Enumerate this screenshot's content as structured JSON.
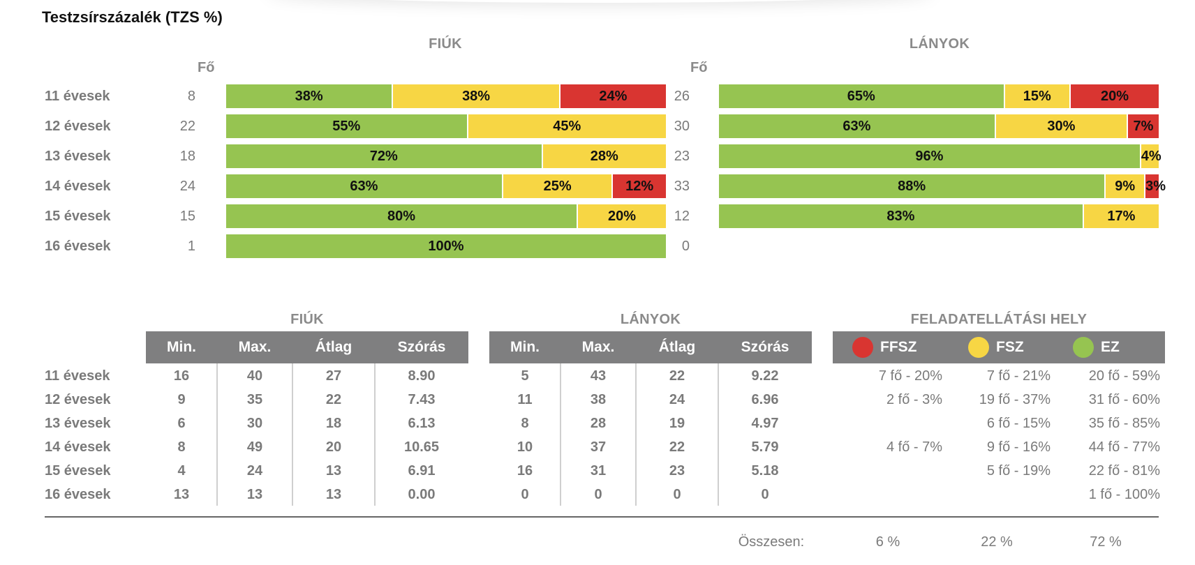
{
  "title": "Testzsírszázalék (TZS %)",
  "colors": {
    "green": "#96c451",
    "yellow": "#f7d644",
    "red": "#d93531",
    "header": "#7f7f80"
  },
  "chart_data": {
    "type": "bar",
    "stacked": true,
    "categories": [
      "11 évesek",
      "12 évesek",
      "13 évesek",
      "14 évesek",
      "15 évesek",
      "16 évesek"
    ],
    "count_header": "Fő",
    "panels": [
      {
        "title": "FIÚK",
        "counts": [
          "8",
          "22",
          "18",
          "24",
          "15",
          "1"
        ],
        "rows": [
          [
            {
              "c": "g",
              "v": 38,
              "label": "38%"
            },
            {
              "c": "y",
              "v": 38,
              "label": "38%"
            },
            {
              "c": "r",
              "v": 24,
              "label": "24%"
            }
          ],
          [
            {
              "c": "g",
              "v": 55,
              "label": "55%"
            },
            {
              "c": "y",
              "v": 45,
              "label": "45%"
            }
          ],
          [
            {
              "c": "g",
              "v": 72,
              "label": "72%"
            },
            {
              "c": "y",
              "v": 28,
              "label": "28%"
            }
          ],
          [
            {
              "c": "g",
              "v": 63,
              "label": "63%"
            },
            {
              "c": "y",
              "v": 25,
              "label": "25%"
            },
            {
              "c": "r",
              "v": 12,
              "label": "12%"
            }
          ],
          [
            {
              "c": "g",
              "v": 80,
              "label": "80%"
            },
            {
              "c": "y",
              "v": 20,
              "label": "20%"
            }
          ],
          [
            {
              "c": "g",
              "v": 100,
              "label": "100%"
            }
          ]
        ]
      },
      {
        "title": "LÁNYOK",
        "counts": [
          "26",
          "30",
          "23",
          "33",
          "12",
          "0"
        ],
        "rows": [
          [
            {
              "c": "g",
              "v": 65,
              "label": "65%"
            },
            {
              "c": "y",
              "v": 15,
              "label": "15%"
            },
            {
              "c": "r",
              "v": 20,
              "label": "20%"
            }
          ],
          [
            {
              "c": "g",
              "v": 63,
              "label": "63%"
            },
            {
              "c": "y",
              "v": 30,
              "label": "30%"
            },
            {
              "c": "r",
              "v": 7,
              "label": "7%"
            }
          ],
          [
            {
              "c": "g",
              "v": 96,
              "label": "96%"
            },
            {
              "c": "y",
              "v": 4,
              "label": "4%"
            }
          ],
          [
            {
              "c": "g",
              "v": 88,
              "label": "88%"
            },
            {
              "c": "y",
              "v": 9,
              "label": "9%"
            },
            {
              "c": "r",
              "v": 3,
              "label": "3%"
            }
          ],
          [
            {
              "c": "g",
              "v": 83,
              "label": "83%"
            },
            {
              "c": "y",
              "v": 17,
              "label": "17%"
            }
          ],
          []
        ]
      }
    ]
  },
  "stats": {
    "columns": [
      "Min.",
      "Max.",
      "Átlag",
      "Szórás"
    ],
    "row_labels": [
      "11 évesek",
      "12 évesek",
      "13 évesek",
      "14 évesek",
      "15 évesek",
      "16 évesek"
    ],
    "fiuk": {
      "title": "FIÚK",
      "rows": [
        [
          "16",
          "40",
          "27",
          "8.90"
        ],
        [
          "9",
          "35",
          "22",
          "7.43"
        ],
        [
          "6",
          "30",
          "18",
          "6.13"
        ],
        [
          "8",
          "49",
          "20",
          "10.65"
        ],
        [
          "4",
          "24",
          "13",
          "6.91"
        ],
        [
          "13",
          "13",
          "13",
          "0.00"
        ]
      ]
    },
    "lanyok": {
      "title": "LÁNYOK",
      "rows": [
        [
          "5",
          "43",
          "22",
          "9.22"
        ],
        [
          "11",
          "38",
          "24",
          "6.96"
        ],
        [
          "8",
          "28",
          "19",
          "4.97"
        ],
        [
          "10",
          "37",
          "22",
          "5.79"
        ],
        [
          "16",
          "31",
          "23",
          "5.18"
        ],
        [
          "0",
          "0",
          "0",
          "0"
        ]
      ]
    }
  },
  "feladat": {
    "title": "FELADATELLÁTÁSI HELY",
    "legend": [
      {
        "label": "FFSZ",
        "color": "#d93531"
      },
      {
        "label": "FSZ",
        "color": "#f7d644"
      },
      {
        "label": "EZ",
        "color": "#96c451"
      }
    ],
    "rows": [
      [
        "7 fő - 20%",
        "7 fő - 21%",
        "20 fő - 59%"
      ],
      [
        "2 fő - 3%",
        "19 fő - 37%",
        "31 fő - 60%"
      ],
      [
        "",
        "6 fő - 15%",
        "35 fő - 85%"
      ],
      [
        "4 fő - 7%",
        "9 fő - 16%",
        "44 fő - 77%"
      ],
      [
        "",
        "5 fő - 19%",
        "22 fő - 81%"
      ],
      [
        "",
        "",
        "1 fő - 100%"
      ]
    ],
    "total_label": "Összesen:",
    "totals": [
      "6 %",
      "22 %",
      "72 %"
    ]
  }
}
